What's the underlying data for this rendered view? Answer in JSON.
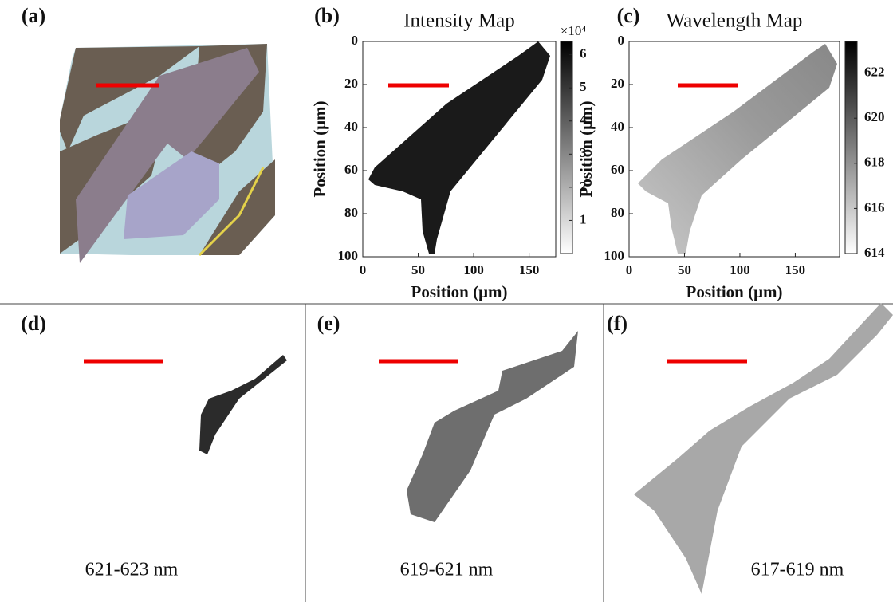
{
  "chart_data": [
    {
      "type": "image",
      "label": "(a)"
    },
    {
      "type": "heatmap",
      "label": "(b)",
      "title": "Intensity Map",
      "xlabel": "Position (μm)",
      "ylabel": "Position (μm)",
      "xlim": [
        0,
        174
      ],
      "xticks": [
        0,
        50,
        100,
        150
      ],
      "ylim": [
        0,
        100
      ],
      "yticks": [
        0,
        20,
        40,
        60,
        80,
        100
      ],
      "y_inverted": true,
      "clim": [
        0,
        6.4
      ],
      "cticks": [
        1,
        2,
        3,
        4,
        5,
        6
      ],
      "colorbar_multiplier": "×10⁴"
    },
    {
      "type": "heatmap",
      "label": "(c)",
      "title": "Wavelength Map",
      "xlabel": "Position (μm)",
      "ylabel": "Position (μm)",
      "xlim": [
        0,
        190
      ],
      "xticks": [
        0,
        50,
        100,
        150
      ],
      "ylim": [
        0,
        100
      ],
      "yticks": [
        0,
        20,
        40,
        60,
        80,
        100
      ],
      "y_inverted": true,
      "clim": [
        614,
        623.4
      ],
      "cticks": [
        614,
        616,
        618,
        620,
        622
      ]
    },
    {
      "type": "heatmap",
      "label": "(d)",
      "annotation": "621-623 nm"
    },
    {
      "type": "heatmap",
      "label": "(e)",
      "annotation": "619-621 nm"
    },
    {
      "type": "heatmap",
      "label": "(f)",
      "annotation": "617-619 nm"
    }
  ]
}
